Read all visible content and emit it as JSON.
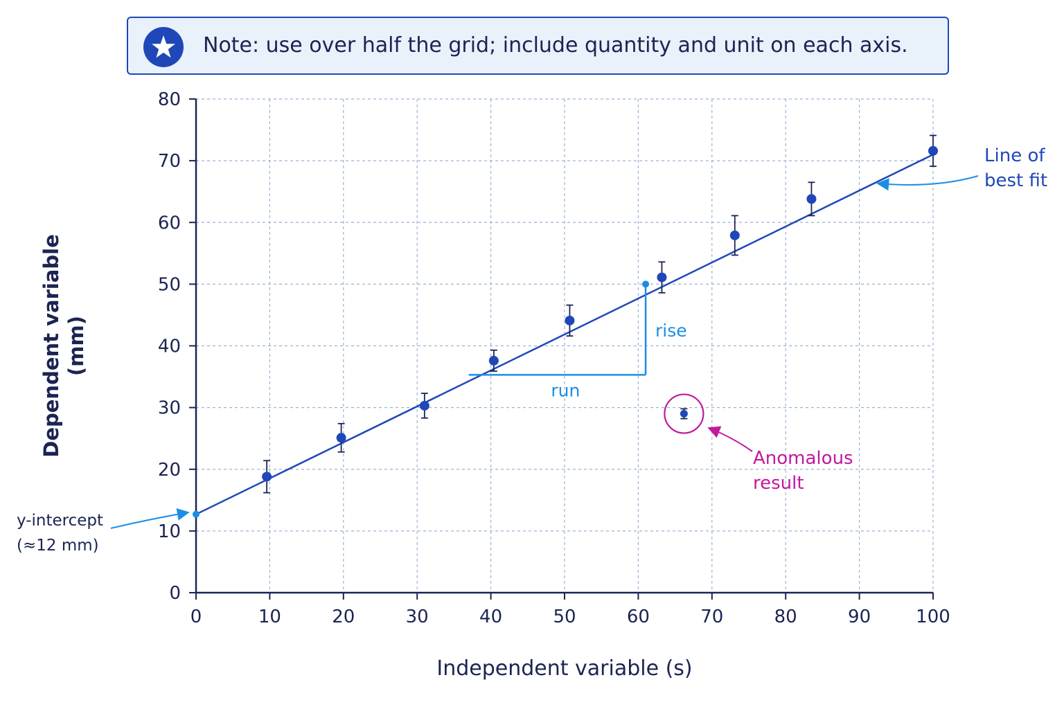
{
  "note": {
    "text": "Note: use over half the grid; include quantity and unit on each axis.",
    "icon": "star-icon"
  },
  "chart_data": {
    "type": "scatter",
    "xlabel": "Independent variable (s)",
    "ylabel_lines": [
      "Dependent variable",
      "(mm)"
    ],
    "xlim": [
      0,
      100
    ],
    "ylim": [
      0,
      80
    ],
    "xticks": [
      0,
      10,
      20,
      30,
      40,
      50,
      60,
      70,
      80,
      90,
      100
    ],
    "yticks": [
      0,
      10,
      20,
      30,
      40,
      50,
      60,
      70,
      80
    ],
    "grid": true,
    "points": [
      {
        "x": 9.6,
        "y": 18.8,
        "err": 2.6
      },
      {
        "x": 19.7,
        "y": 25.1,
        "err": 2.3
      },
      {
        "x": 31.0,
        "y": 30.3,
        "err": 2.0
      },
      {
        "x": 40.4,
        "y": 37.6,
        "err": 1.7
      },
      {
        "x": 50.7,
        "y": 44.1,
        "err": 2.5
      },
      {
        "x": 63.2,
        "y": 51.1,
        "err": 2.5
      },
      {
        "x": 73.1,
        "y": 57.9,
        "err": 3.2
      },
      {
        "x": 83.5,
        "y": 63.8,
        "err": 2.7
      },
      {
        "x": 100.0,
        "y": 71.6,
        "err": 2.5
      }
    ],
    "anomaly": {
      "x": 66.2,
      "y": 29.0,
      "err": 0.8
    },
    "best_fit": {
      "x": [
        0,
        100
      ],
      "y": [
        12.7,
        71.0
      ]
    },
    "gradient_triangle": {
      "x1": 37.0,
      "x2": 61.0,
      "y_low": 35.3,
      "y_high": 50.0,
      "rise_label": "rise",
      "run_label": "run"
    },
    "annotations": {
      "best_fit_lines": [
        "Line of",
        "best fit"
      ],
      "intercept_lines": [
        "y-intercept",
        "(≈12 mm)"
      ],
      "anomaly_lines": [
        "Anomalous",
        "result"
      ]
    },
    "colors": {
      "axis": "#1b2452",
      "grid": "#9bb2d6",
      "line": "#1f47b8",
      "point": "#1f47b8",
      "accent": "#1a8ee6",
      "anomaly": "#c0199e",
      "text": "#1b2452"
    }
  }
}
